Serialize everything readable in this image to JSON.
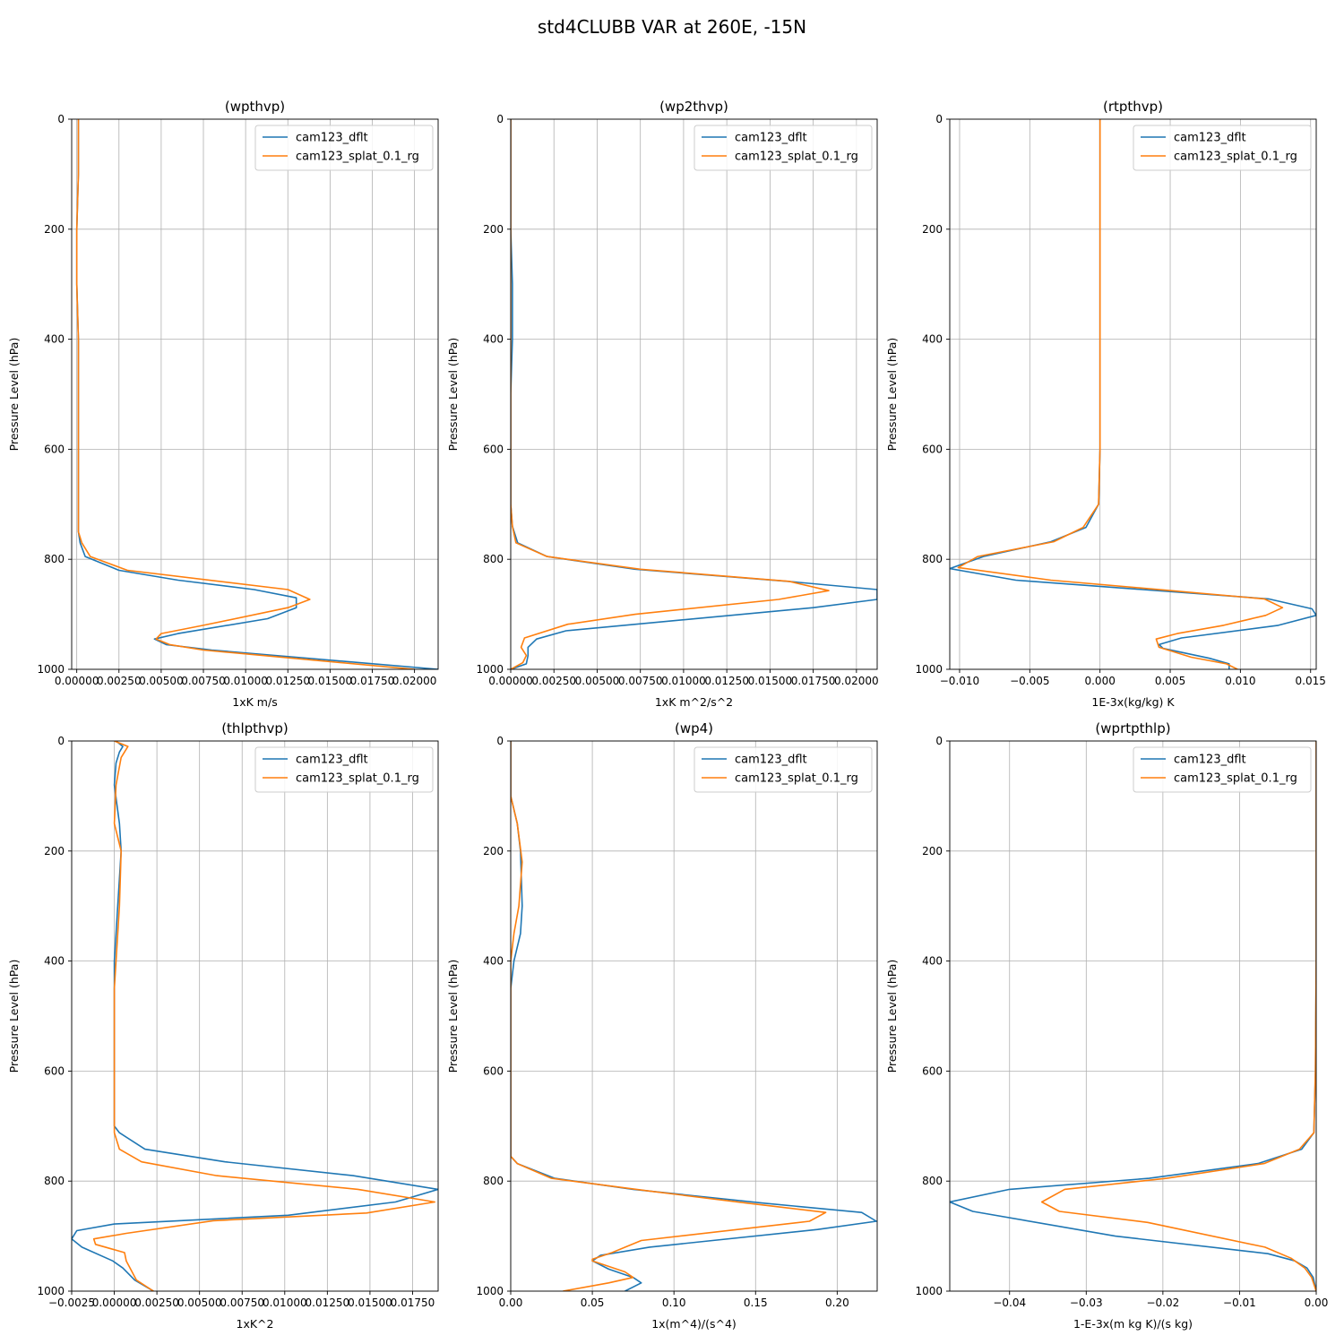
{
  "figure": {
    "title": "std4CLUBB VAR at 260E, -15N"
  },
  "colors": {
    "cam123_dflt": "#1f77b4",
    "cam123_splat_0.1_rg": "#ff7f0e"
  },
  "chart_data": [
    {
      "type": "line",
      "title": "(wpthvp)",
      "xlabel": "1xK m/s",
      "ylabel": "Pressure Level (hPa)",
      "xlim": [
        -0.0003,
        0.0214
      ],
      "ylim": [
        1000,
        0
      ],
      "y_inverted": true,
      "grid": true,
      "legend_loc": "upper-right",
      "xticks": [
        0.0,
        0.0025,
        0.005,
        0.0075,
        0.01,
        0.0125,
        0.015,
        0.0175,
        0.02
      ],
      "xtick_labels": [
        "0.00000",
        "0.00250",
        "0.00500",
        "0.00750",
        "0.01000",
        "0.01250",
        "0.01500",
        "0.01750",
        "0.02000"
      ],
      "yticks": [
        0,
        200,
        400,
        600,
        800,
        1000
      ],
      "ytick_labels": [
        "0",
        "200",
        "400",
        "600",
        "800",
        "1000"
      ],
      "series": [
        {
          "name": "cam123_dflt",
          "x": [
            0.0001,
            0.0001,
            0.0,
            0.0,
            0.0001,
            0.0001,
            0.0001,
            0.0001,
            0.0001,
            0.0002,
            0.0005,
            0.0025,
            0.006,
            0.0105,
            0.013,
            0.013,
            0.0113,
            0.006,
            0.0046,
            0.0053,
            0.008,
            0.0214
          ],
          "y": [
            0,
            100,
            200,
            300,
            400,
            500,
            600,
            700,
            750,
            770,
            795,
            820,
            838,
            855,
            870,
            888,
            908,
            935,
            945,
            955,
            965,
            1000
          ]
        },
        {
          "name": "cam123_splat_0.1_rg",
          "x": [
            0.0001,
            0.0001,
            0.0,
            0.0,
            0.0001,
            0.0001,
            0.0001,
            0.0001,
            0.0001,
            0.0003,
            0.0008,
            0.003,
            0.0125,
            0.0138,
            0.0125,
            0.0075,
            0.005,
            0.0047,
            0.0055,
            0.0075,
            0.02
          ],
          "y": [
            0,
            100,
            200,
            300,
            400,
            500,
            600,
            700,
            750,
            770,
            795,
            820,
            855,
            873,
            888,
            920,
            935,
            945,
            955,
            965,
            1000
          ]
        }
      ]
    },
    {
      "type": "line",
      "title": "(wp2thvp)",
      "xlabel": "1xK m^2/s^2",
      "ylabel": "Pressure Level (hPa)",
      "xlim": [
        0.0,
        0.0212
      ],
      "ylim": [
        1000,
        0
      ],
      "y_inverted": true,
      "grid": true,
      "legend_loc": "upper-right",
      "xticks": [
        0.0,
        0.0025,
        0.005,
        0.0075,
        0.01,
        0.0125,
        0.015,
        0.0175,
        0.02
      ],
      "xtick_labels": [
        "0.00000",
        "0.00250",
        "0.00500",
        "0.00750",
        "0.01000",
        "0.01250",
        "0.01500",
        "0.01750",
        "0.02000"
      ],
      "yticks": [
        0,
        200,
        400,
        600,
        800,
        1000
      ],
      "ytick_labels": [
        "0",
        "200",
        "400",
        "600",
        "800",
        "1000"
      ],
      "series": [
        {
          "name": "cam123_dflt",
          "x": [
            0.0,
            0.0,
            0.0,
            0.0001,
            0.0001,
            0.0,
            0.0,
            0.0,
            0.0001,
            0.0004,
            0.0021,
            0.0072,
            0.016,
            0.0212,
            0.0212,
            0.0175,
            0.0032,
            0.0015,
            0.001,
            0.001,
            0.0009,
            0.0
          ],
          "y": [
            0,
            100,
            200,
            300,
            400,
            500,
            600,
            700,
            740,
            770,
            795,
            818,
            840,
            855,
            873,
            888,
            930,
            945,
            960,
            975,
            990,
            1000
          ]
        },
        {
          "name": "cam123_splat_0.1_rg",
          "x": [
            0.0,
            0.0,
            0.0,
            0.0,
            0.0,
            0.0,
            0.0,
            0.0,
            0.0001,
            0.0003,
            0.0021,
            0.0075,
            0.0161,
            0.0184,
            0.0155,
            0.0072,
            0.0033,
            0.0008,
            0.0006,
            0.0009,
            0.0007,
            0.0
          ],
          "y": [
            0,
            100,
            200,
            300,
            400,
            500,
            600,
            700,
            740,
            770,
            795,
            818,
            840,
            857,
            873,
            900,
            918,
            943,
            960,
            975,
            988,
            1000
          ]
        }
      ]
    },
    {
      "type": "line",
      "title": "(rtpthvp)",
      "xlabel": "1E-3x(kg/kg) K",
      "ylabel": "Pressure Level (hPa)",
      "xlim": [
        -0.0107,
        0.0154
      ],
      "ylim": [
        1000,
        0
      ],
      "y_inverted": true,
      "grid": true,
      "legend_loc": "upper-right",
      "xticks": [
        -0.01,
        -0.005,
        0.0,
        0.005,
        0.01,
        0.015
      ],
      "xtick_labels": [
        "−0.010",
        "−0.005",
        "0.000",
        "0.005",
        "0.010",
        "0.015"
      ],
      "yticks": [
        0,
        200,
        400,
        600,
        800,
        1000
      ],
      "ytick_labels": [
        "0",
        "200",
        "400",
        "600",
        "800",
        "1000"
      ],
      "series": [
        {
          "name": "cam123_dflt",
          "x": [
            0.0,
            0.0,
            0.0,
            0.0,
            0.0,
            0.0,
            0.0,
            -0.0001,
            -0.001,
            -0.0035,
            -0.0083,
            -0.0107,
            -0.006,
            0.012,
            0.0151,
            0.0154,
            0.0127,
            0.0058,
            0.0042,
            0.0045,
            0.0078,
            0.0092,
            0.0092
          ],
          "y": [
            0,
            100,
            200,
            300,
            400,
            500,
            600,
            700,
            742,
            768,
            795,
            817,
            838,
            872,
            890,
            902,
            920,
            943,
            955,
            962,
            980,
            990,
            1000
          ]
        },
        {
          "name": "cam123_splat_0.1_rg",
          "x": [
            0.0,
            0.0,
            0.0,
            0.0,
            0.0,
            0.0,
            0.0,
            -0.0001,
            -0.0012,
            -0.0033,
            -0.0087,
            -0.0101,
            -0.0035,
            0.0055,
            0.0117,
            0.013,
            0.0118,
            0.0088,
            0.0055,
            0.004,
            0.0042,
            0.0065,
            0.009,
            0.0098
          ],
          "y": [
            0,
            100,
            200,
            300,
            400,
            500,
            600,
            700,
            742,
            768,
            795,
            815,
            838,
            858,
            872,
            888,
            902,
            920,
            935,
            945,
            960,
            978,
            990,
            1000
          ]
        }
      ]
    },
    {
      "type": "line",
      "title": "(thlpthvp)",
      "xlabel": "1xK^2",
      "ylabel": "Pressure Level (hPa)",
      "xlim": [
        -0.0025,
        0.019
      ],
      "ylim": [
        1000,
        0
      ],
      "y_inverted": true,
      "grid": true,
      "legend_loc": "upper-right",
      "xticks": [
        -0.0025,
        0.0,
        0.0025,
        0.005,
        0.0075,
        0.01,
        0.0125,
        0.015,
        0.0175
      ],
      "xtick_labels": [
        "−0.0025",
        "0.00000",
        "0.00250",
        "0.00500",
        "0.00750",
        "0.01000",
        "0.01250",
        "0.01500",
        "0.01750"
      ],
      "yticks": [
        0,
        200,
        400,
        600,
        800,
        1000
      ],
      "ytick_labels": [
        "0",
        "200",
        "400",
        "600",
        "800",
        "1000"
      ],
      "series": [
        {
          "name": "cam123_dflt",
          "x": [
            0.0001,
            0.0005,
            0.0003,
            0.0001,
            0.0,
            0.0003,
            0.0004,
            0.0003,
            0.0002,
            0.0001,
            0.0,
            0.0,
            0.0,
            0.0,
            0.0,
            0.0003,
            0.0018,
            0.0065,
            0.014,
            0.019,
            0.0165,
            0.0102,
            0.0,
            -0.0022,
            -0.0025,
            -0.0019,
            -0.0001,
            0.0005,
            0.0012,
            0.0023
          ],
          "y": [
            0,
            10,
            20,
            40,
            80,
            150,
            200,
            250,
            300,
            350,
            400,
            450,
            500,
            600,
            700,
            712,
            742,
            765,
            790,
            815,
            838,
            862,
            878,
            890,
            905,
            920,
            945,
            958,
            980,
            1000
          ]
        },
        {
          "name": "cam123_splat_0.1_rg",
          "x": [
            0.0,
            0.0008,
            0.0004,
            0.0001,
            0.0,
            0.0004,
            0.0003,
            0.0002,
            0.0001,
            0.0,
            0.0,
            0.0,
            0.0,
            0.0,
            0.0003,
            0.0016,
            0.006,
            0.0143,
            0.0188,
            0.0148,
            0.0058,
            0.0007,
            -0.0012,
            -0.0011,
            0.0006,
            0.0007,
            0.0013,
            0.0023
          ],
          "y": [
            0,
            10,
            30,
            80,
            150,
            200,
            300,
            350,
            400,
            450,
            500,
            600,
            700,
            712,
            742,
            765,
            790,
            815,
            838,
            858,
            872,
            895,
            905,
            915,
            930,
            945,
            980,
            1000
          ]
        }
      ]
    },
    {
      "type": "line",
      "title": "(wp4)",
      "xlabel": "1x(m^4)/(s^4)",
      "ylabel": "Pressure Level (hPa)",
      "xlim": [
        0.0,
        0.2245
      ],
      "ylim": [
        1000,
        0
      ],
      "y_inverted": true,
      "grid": true,
      "legend_loc": "upper-right",
      "xticks": [
        0.0,
        0.05,
        0.1,
        0.15,
        0.2
      ],
      "xtick_labels": [
        "0.00",
        "0.05",
        "0.10",
        "0.15",
        "0.20"
      ],
      "yticks": [
        0,
        200,
        400,
        600,
        800,
        1000
      ],
      "ytick_labels": [
        "0",
        "200",
        "400",
        "600",
        "800",
        "1000"
      ],
      "series": [
        {
          "name": "cam123_dflt",
          "x": [
            0.0,
            0.0,
            0.004,
            0.006,
            0.007,
            0.006,
            0.002,
            0.0,
            0.0,
            0.0,
            0.0,
            0.0,
            0.0,
            0.004,
            0.027,
            0.075,
            0.155,
            0.215,
            0.224,
            0.188,
            0.085,
            0.055,
            0.05,
            0.06,
            0.075,
            0.08,
            0.07
          ],
          "y": [
            0,
            100,
            150,
            200,
            300,
            350,
            400,
            450,
            500,
            600,
            700,
            740,
            755,
            768,
            795,
            815,
            840,
            857,
            873,
            888,
            920,
            935,
            945,
            960,
            975,
            985,
            1000
          ]
        },
        {
          "name": "cam123_splat_0.1_rg",
          "x": [
            0.0,
            0.0,
            0.004,
            0.007,
            0.005,
            0.002,
            0.0,
            0.0,
            0.0,
            0.0,
            0.0,
            0.0,
            0.0,
            0.004,
            0.025,
            0.085,
            0.145,
            0.193,
            0.183,
            0.08,
            0.062,
            0.05,
            0.05,
            0.06,
            0.07,
            0.075,
            0.06,
            0.032
          ],
          "y": [
            0,
            100,
            150,
            220,
            300,
            350,
            400,
            450,
            500,
            600,
            700,
            740,
            755,
            768,
            795,
            818,
            840,
            857,
            873,
            908,
            930,
            942,
            945,
            955,
            965,
            975,
            985,
            1000
          ]
        }
      ]
    },
    {
      "type": "line",
      "title": "(wprtpthlp)",
      "xlabel": "1-E-3x(m kg K)/(s kg)",
      "ylabel": "Pressure Level (hPa)",
      "xlim": [
        -0.0478,
        0.0
      ],
      "ylim": [
        1000,
        0
      ],
      "y_inverted": true,
      "grid": true,
      "legend_loc": "upper-right",
      "xticks": [
        -0.04,
        -0.03,
        -0.02,
        -0.01,
        0.0
      ],
      "xtick_labels": [
        "−0.04",
        "−0.03",
        "−0.02",
        "−0.01",
        "0.00"
      ],
      "yticks": [
        0,
        200,
        400,
        600,
        800,
        1000
      ],
      "ytick_labels": [
        "0",
        "200",
        "400",
        "600",
        "800",
        "1000"
      ],
      "series": [
        {
          "name": "cam123_dflt",
          "x": [
            0.0,
            0.0,
            0.0,
            0.0,
            -0.0001,
            -0.0003,
            -0.0019,
            -0.0076,
            -0.0218,
            -0.04,
            -0.0478,
            -0.0448,
            -0.0262,
            -0.0063,
            -0.0028,
            -0.0012,
            -0.0004,
            0.0
          ],
          "y": [
            0,
            100,
            200,
            400,
            600,
            712,
            742,
            768,
            795,
            815,
            838,
            855,
            900,
            932,
            945,
            958,
            975,
            1000
          ]
        },
        {
          "name": "cam123_splat_0.1_rg",
          "x": [
            0.0,
            0.0,
            0.0,
            0.0,
            -0.0001,
            -0.0003,
            -0.0022,
            -0.0068,
            -0.0195,
            -0.0328,
            -0.0358,
            -0.0335,
            -0.022,
            -0.0067,
            -0.0033,
            -0.0015,
            -0.0006,
            0.0
          ],
          "y": [
            0,
            100,
            200,
            400,
            600,
            712,
            742,
            768,
            795,
            815,
            838,
            855,
            875,
            920,
            940,
            958,
            975,
            1000
          ]
        }
      ]
    }
  ]
}
